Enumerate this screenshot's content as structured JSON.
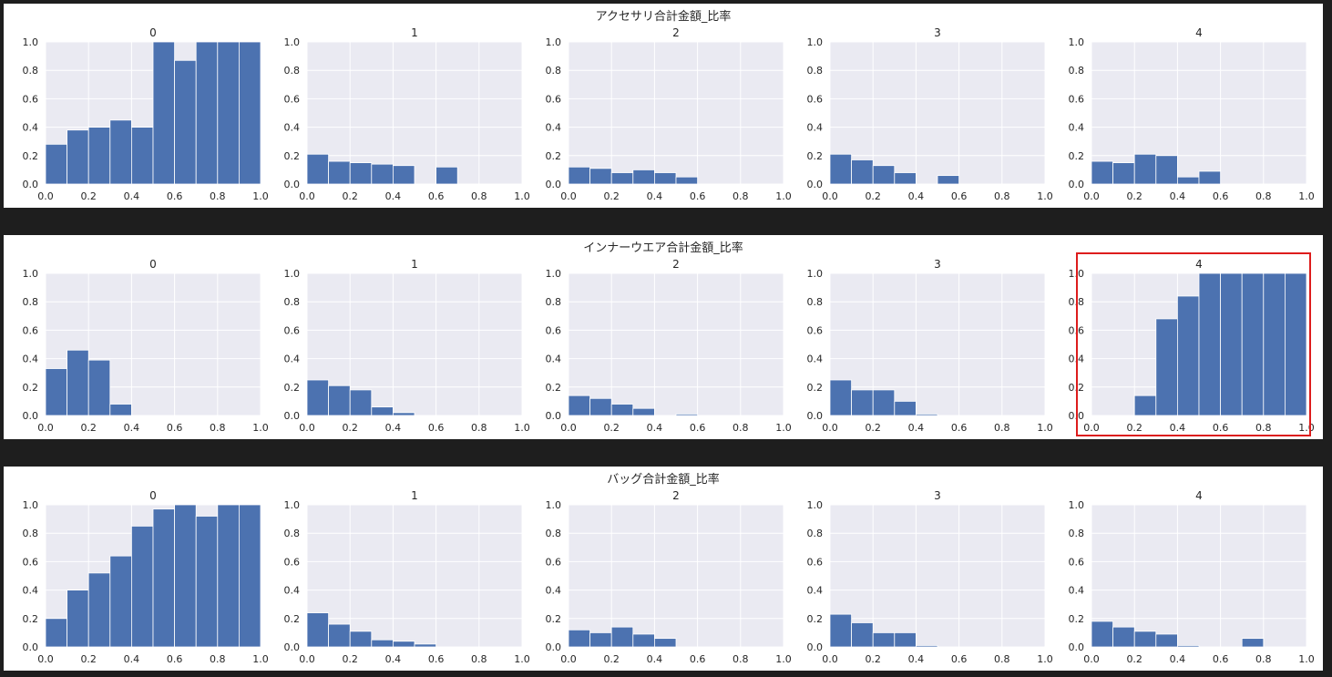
{
  "chart_data": [
    {
      "type": "bar",
      "title": "アクセサリ合計金額_比率",
      "panels": [
        {
          "title": "0",
          "values": [
            0.28,
            0.38,
            0.4,
            0.45,
            0.4,
            1.0,
            0.87,
            1.0,
            1.0,
            1.0
          ]
        },
        {
          "title": "1",
          "values": [
            0.21,
            0.16,
            0.15,
            0.14,
            0.13,
            0.0,
            0.12,
            0.0,
            0.0,
            0.0
          ]
        },
        {
          "title": "2",
          "values": [
            0.12,
            0.11,
            0.08,
            0.1,
            0.08,
            0.05,
            0.0,
            0.0,
            0.0,
            0.0
          ]
        },
        {
          "title": "3",
          "values": [
            0.21,
            0.17,
            0.13,
            0.08,
            0.0,
            0.06,
            0.0,
            0.0,
            0.0,
            0.0
          ]
        },
        {
          "title": "4",
          "values": [
            0.16,
            0.15,
            0.21,
            0.2,
            0.05,
            0.09,
            0.0,
            0.0,
            0.0,
            0.0
          ]
        }
      ],
      "bins": [
        0.0,
        0.1,
        0.2,
        0.3,
        0.4,
        0.5,
        0.6,
        0.7,
        0.8,
        0.9,
        1.0
      ],
      "xlim": [
        0,
        1
      ],
      "ylim": [
        0,
        1
      ],
      "xticks": [
        "0.0",
        "0.2",
        "0.4",
        "0.6",
        "0.8",
        "1.0"
      ],
      "yticks": [
        "0.0",
        "0.2",
        "0.4",
        "0.6",
        "0.8",
        "1.0"
      ]
    },
    {
      "type": "bar",
      "title": "インナーウエア合計金額_比率",
      "highlighted_panel": "4",
      "panels": [
        {
          "title": "0",
          "values": [
            0.33,
            0.46,
            0.39,
            0.08,
            0.0,
            0.0,
            0.0,
            0.0,
            0.0,
            0.0
          ]
        },
        {
          "title": "1",
          "values": [
            0.25,
            0.21,
            0.18,
            0.06,
            0.02,
            0.0,
            0.0,
            0.0,
            0.0,
            0.0
          ]
        },
        {
          "title": "2",
          "values": [
            0.14,
            0.12,
            0.08,
            0.05,
            0.0,
            0.01,
            0.0,
            0.0,
            0.0,
            0.0
          ]
        },
        {
          "title": "3",
          "values": [
            0.25,
            0.18,
            0.18,
            0.1,
            0.01,
            0.0,
            0.0,
            0.0,
            0.0,
            0.0
          ]
        },
        {
          "title": "4",
          "values": [
            0.0,
            0.0,
            0.14,
            0.68,
            0.84,
            1.0,
            1.0,
            1.0,
            1.0,
            1.0
          ]
        }
      ],
      "bins": [
        0.0,
        0.1,
        0.2,
        0.3,
        0.4,
        0.5,
        0.6,
        0.7,
        0.8,
        0.9,
        1.0
      ],
      "xlim": [
        0,
        1
      ],
      "ylim": [
        0,
        1
      ],
      "xticks": [
        "0.0",
        "0.2",
        "0.4",
        "0.6",
        "0.8",
        "1.0"
      ],
      "yticks": [
        "0.0",
        "0.2",
        "0.4",
        "0.6",
        "0.8",
        "1.0"
      ]
    },
    {
      "type": "bar",
      "title": "バッグ合計金額_比率",
      "panels": [
        {
          "title": "0",
          "values": [
            0.2,
            0.4,
            0.52,
            0.64,
            0.85,
            0.97,
            1.0,
            0.92,
            1.0,
            1.0
          ]
        },
        {
          "title": "1",
          "values": [
            0.24,
            0.16,
            0.11,
            0.05,
            0.04,
            0.02,
            0.0,
            0.0,
            0.0,
            0.0
          ]
        },
        {
          "title": "2",
          "values": [
            0.12,
            0.1,
            0.14,
            0.09,
            0.06,
            0.0,
            0.0,
            0.0,
            0.0,
            0.0
          ]
        },
        {
          "title": "3",
          "values": [
            0.23,
            0.17,
            0.1,
            0.1,
            0.01,
            0.0,
            0.0,
            0.0,
            0.0,
            0.0
          ]
        },
        {
          "title": "4",
          "values": [
            0.18,
            0.14,
            0.11,
            0.09,
            0.01,
            0.0,
            0.0,
            0.06,
            0.0,
            0.0
          ]
        }
      ],
      "bins": [
        0.0,
        0.1,
        0.2,
        0.3,
        0.4,
        0.5,
        0.6,
        0.7,
        0.8,
        0.9,
        1.0
      ],
      "xlim": [
        0,
        1
      ],
      "ylim": [
        0,
        1
      ],
      "xticks": [
        "0.0",
        "0.2",
        "0.4",
        "0.6",
        "0.8",
        "1.0"
      ],
      "yticks": [
        "0.0",
        "0.2",
        "0.4",
        "0.6",
        "0.8",
        "1.0"
      ]
    }
  ],
  "colors": {
    "bar": "#4c72b0",
    "plot_background": "#eaeaf2",
    "grid": "#ffffff",
    "highlight_box": "#dd1c1c"
  }
}
